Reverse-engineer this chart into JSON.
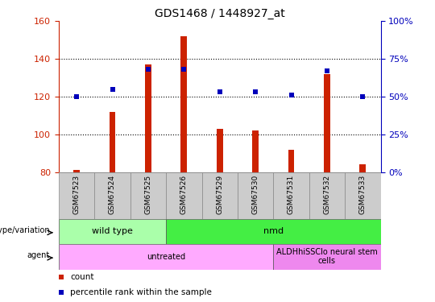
{
  "title": "GDS1468 / 1448927_at",
  "samples": [
    "GSM67523",
    "GSM67524",
    "GSM67525",
    "GSM67526",
    "GSM67529",
    "GSM67530",
    "GSM67531",
    "GSM67532",
    "GSM67533"
  ],
  "counts": [
    81,
    112,
    137,
    152,
    103,
    102,
    92,
    132,
    84
  ],
  "percentiles": [
    50,
    55,
    68,
    68,
    53,
    53,
    51,
    67,
    50
  ],
  "ylim_left": [
    80,
    160
  ],
  "ylim_right": [
    0,
    100
  ],
  "yticks_left": [
    80,
    100,
    120,
    140,
    160
  ],
  "yticks_right": [
    0,
    25,
    50,
    75,
    100
  ],
  "ytick_labels_right": [
    "0%",
    "25%",
    "50%",
    "75%",
    "100%"
  ],
  "bar_color": "#cc2200",
  "dot_color": "#0000bb",
  "bar_bottom": 80,
  "bar_width": 0.18,
  "genotype_labels": [
    {
      "label": "wild type",
      "start": 0,
      "end": 3,
      "color": "#aaffaa"
    },
    {
      "label": "nmd",
      "start": 3,
      "end": 9,
      "color": "#44ee44"
    }
  ],
  "agent_labels": [
    {
      "label": "untreated",
      "start": 0,
      "end": 6,
      "color": "#ffaaff"
    },
    {
      "label": "ALDHhiSSClo neural stem\ncells",
      "start": 6,
      "end": 9,
      "color": "#ee88ee"
    }
  ],
  "legend_count_color": "#cc2200",
  "legend_dot_color": "#0000bb",
  "legend_count_label": "count",
  "legend_dot_label": "percentile rank within the sample",
  "genotype_row_label": "genotype/variation",
  "agent_row_label": "agent",
  "left_axis_color": "#cc2200",
  "right_axis_color": "#0000bb",
  "sample_bg_color": "#cccccc",
  "sample_edge_color": "#888888"
}
